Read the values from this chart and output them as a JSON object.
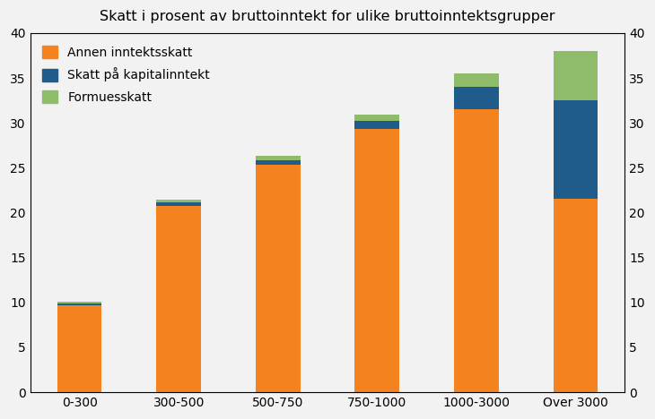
{
  "categories": [
    "0-300",
    "300-500",
    "500-750",
    "750-1000",
    "1000-3000",
    "Over 3000"
  ],
  "annen_inntektsskatt": [
    9.7,
    20.7,
    25.3,
    29.3,
    31.5,
    21.5
  ],
  "skatt_kapitalinntekt": [
    0.2,
    0.4,
    0.5,
    0.9,
    2.5,
    11.0
  ],
  "formuesskatt": [
    0.2,
    0.3,
    0.5,
    0.7,
    1.5,
    5.5
  ],
  "color_annen": "#F4821E",
  "color_kapital": "#1F5C8B",
  "color_formue": "#8FBC6A",
  "bg_color": "#F2F2F2",
  "title": "Skatt i prosent av bruttoinntekt for ulike bruttoinntektsgrupper",
  "legend_annen": "Annen inntektsskatt",
  "legend_kapital": "Skatt på kapitalinntekt",
  "legend_formue": "Formuesskatt",
  "ylim": [
    0,
    40
  ],
  "yticks": [
    0,
    5,
    10,
    15,
    20,
    25,
    30,
    35,
    40
  ],
  "bar_width": 0.45,
  "title_fontsize": 11.5,
  "axis_fontsize": 10,
  "legend_fontsize": 10
}
